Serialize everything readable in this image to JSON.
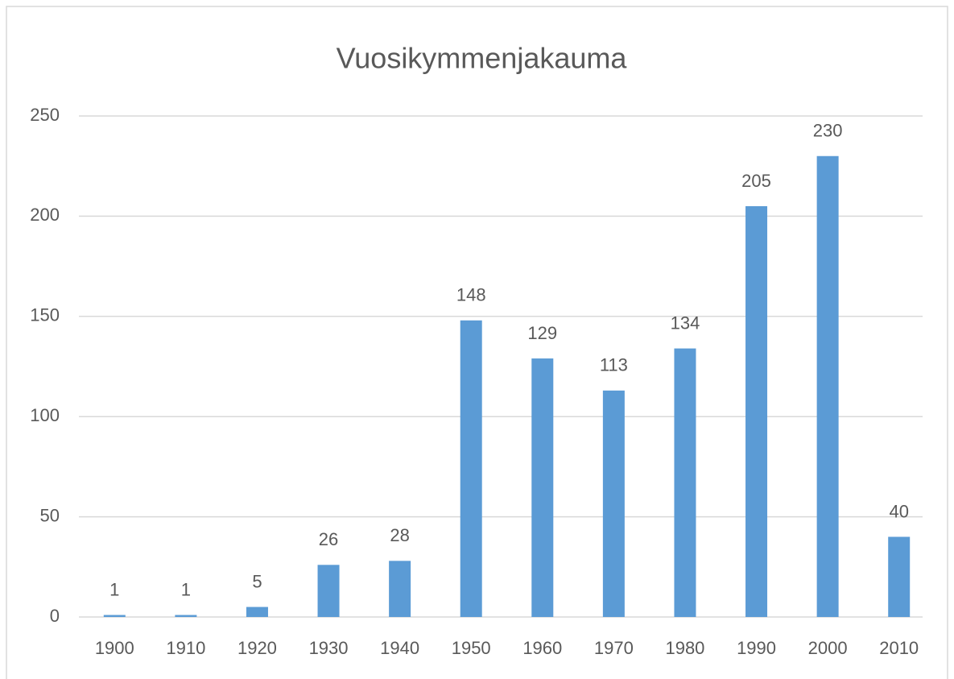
{
  "chart_data": {
    "type": "bar",
    "title": "Vuosikymmenjakauma",
    "categories": [
      "1900",
      "1910",
      "1920",
      "1930",
      "1940",
      "1950",
      "1960",
      "1970",
      "1980",
      "1990",
      "2000",
      "2010"
    ],
    "values": [
      1,
      1,
      5,
      26,
      28,
      148,
      129,
      113,
      134,
      205,
      230,
      40
    ],
    "color": "#5b9bd5",
    "ylim": [
      0,
      250
    ],
    "yticks": [
      0,
      50,
      100,
      150,
      200,
      250
    ],
    "grid": true
  }
}
